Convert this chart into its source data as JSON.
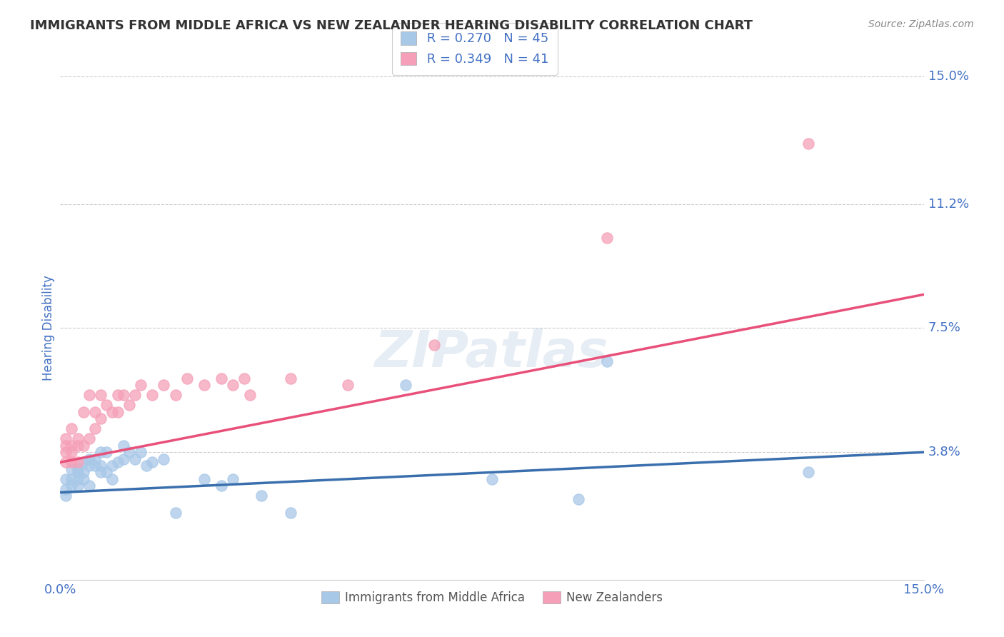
{
  "title": "IMMIGRANTS FROM MIDDLE AFRICA VS NEW ZEALANDER HEARING DISABILITY CORRELATION CHART",
  "source": "Source: ZipAtlas.com",
  "ylabel": "Hearing Disability",
  "xlim": [
    0.0,
    0.15
  ],
  "ylim": [
    0.0,
    0.15
  ],
  "xtick_positions": [
    0.0,
    0.15
  ],
  "xticklabels": [
    "0.0%",
    "15.0%"
  ],
  "ytick_positions": [
    0.038,
    0.075,
    0.112,
    0.15
  ],
  "ytick_labels": [
    "3.8%",
    "7.5%",
    "11.2%",
    "15.0%"
  ],
  "grid_color": "#cccccc",
  "background_color": "#ffffff",
  "watermark": "ZIPatlas",
  "series": [
    {
      "name": "Immigrants from Middle Africa",
      "R": 0.27,
      "N": 45,
      "color": "#a8c8e8",
      "line_color": "#3a6fad",
      "x": [
        0.001,
        0.001,
        0.001,
        0.002,
        0.002,
        0.002,
        0.003,
        0.003,
        0.003,
        0.003,
        0.004,
        0.004,
        0.004,
        0.005,
        0.005,
        0.005,
        0.006,
        0.006,
        0.007,
        0.007,
        0.007,
        0.008,
        0.008,
        0.009,
        0.009,
        0.01,
        0.011,
        0.011,
        0.012,
        0.013,
        0.014,
        0.015,
        0.016,
        0.018,
        0.02,
        0.025,
        0.028,
        0.03,
        0.035,
        0.04,
        0.06,
        0.075,
        0.09,
        0.095,
        0.13
      ],
      "y": [
        0.03,
        0.027,
        0.025,
        0.03,
        0.028,
        0.033,
        0.03,
        0.028,
        0.032,
        0.033,
        0.03,
        0.032,
        0.035,
        0.034,
        0.036,
        0.028,
        0.034,
        0.036,
        0.032,
        0.034,
        0.038,
        0.032,
        0.038,
        0.03,
        0.034,
        0.035,
        0.036,
        0.04,
        0.038,
        0.036,
        0.038,
        0.034,
        0.035,
        0.036,
        0.02,
        0.03,
        0.028,
        0.03,
        0.025,
        0.02,
        0.058,
        0.03,
        0.024,
        0.065,
        0.032
      ]
    },
    {
      "name": "New Zealanders",
      "R": 0.349,
      "N": 41,
      "color": "#f5a0b8",
      "line_color": "#e8507a",
      "x": [
        0.001,
        0.001,
        0.001,
        0.001,
        0.002,
        0.002,
        0.002,
        0.002,
        0.003,
        0.003,
        0.003,
        0.004,
        0.004,
        0.005,
        0.005,
        0.006,
        0.006,
        0.007,
        0.007,
        0.008,
        0.009,
        0.01,
        0.01,
        0.011,
        0.012,
        0.013,
        0.014,
        0.016,
        0.018,
        0.02,
        0.022,
        0.025,
        0.028,
        0.03,
        0.032,
        0.033,
        0.04,
        0.05,
        0.065,
        0.095,
        0.13
      ],
      "y": [
        0.035,
        0.04,
        0.042,
        0.038,
        0.035,
        0.038,
        0.04,
        0.045,
        0.035,
        0.04,
        0.042,
        0.04,
        0.05,
        0.042,
        0.055,
        0.045,
        0.05,
        0.048,
        0.055,
        0.052,
        0.05,
        0.05,
        0.055,
        0.055,
        0.052,
        0.055,
        0.058,
        0.055,
        0.058,
        0.055,
        0.06,
        0.058,
        0.06,
        0.058,
        0.06,
        0.055,
        0.06,
        0.058,
        0.07,
        0.102,
        0.13
      ]
    }
  ],
  "title_color": "#333333",
  "axis_label_color": "#4472c4",
  "tick_label_color": "#4472c4",
  "figsize": [
    14.06,
    8.92
  ],
  "dpi": 100
}
